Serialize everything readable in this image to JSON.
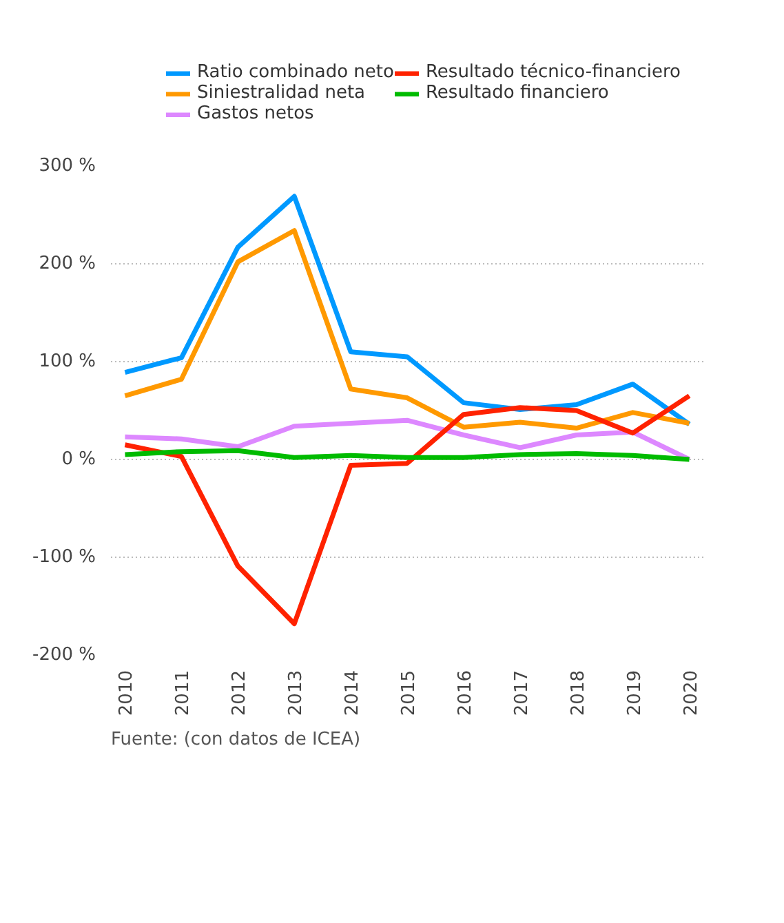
{
  "chart_data": {
    "type": "line",
    "categories": [
      "2010",
      "2011",
      "2012",
      "2013",
      "2014",
      "2015",
      "2016",
      "2017",
      "2018",
      "2019",
      "2020"
    ],
    "series": [
      {
        "name": "Ratio combinado neto",
        "color": "#0099ff",
        "values": [
          89,
          104,
          217,
          269,
          110,
          105,
          58,
          51,
          56,
          77,
          36
        ]
      },
      {
        "name": "Siniestralidad neta",
        "color": "#ff9900",
        "values": [
          65,
          82,
          202,
          234,
          72,
          63,
          33,
          38,
          32,
          48,
          37
        ]
      },
      {
        "name": "Gastos netos",
        "color": "#dd88ff",
        "values": [
          23,
          21,
          13,
          34,
          37,
          40,
          25,
          12,
          25,
          28,
          0
        ]
      },
      {
        "name": "Resultado técnico-financiero",
        "color": "#ff2200",
        "values": [
          15,
          3,
          -109,
          -168,
          -6,
          -4,
          46,
          53,
          50,
          27,
          65
        ]
      },
      {
        "name": "Resultado financiero",
        "color": "#00bb00",
        "values": [
          5,
          8,
          9,
          2,
          4,
          2,
          2,
          5,
          6,
          4,
          0
        ]
      }
    ],
    "ylim": [
      -200,
      300
    ],
    "yticks": [
      {
        "value": -200,
        "label": "-200 %"
      },
      {
        "value": -100,
        "label": "-100 %"
      },
      {
        "value": 0,
        "label": "0 %"
      },
      {
        "value": 100,
        "label": "100 %"
      },
      {
        "value": 200,
        "label": "200 %"
      },
      {
        "value": 300,
        "label": "300 %"
      }
    ],
    "grid": "y",
    "legend": "top",
    "marker": "none",
    "line_style": "solid",
    "annotations": [
      "Fuente: (con datos de ICEA)"
    ]
  }
}
